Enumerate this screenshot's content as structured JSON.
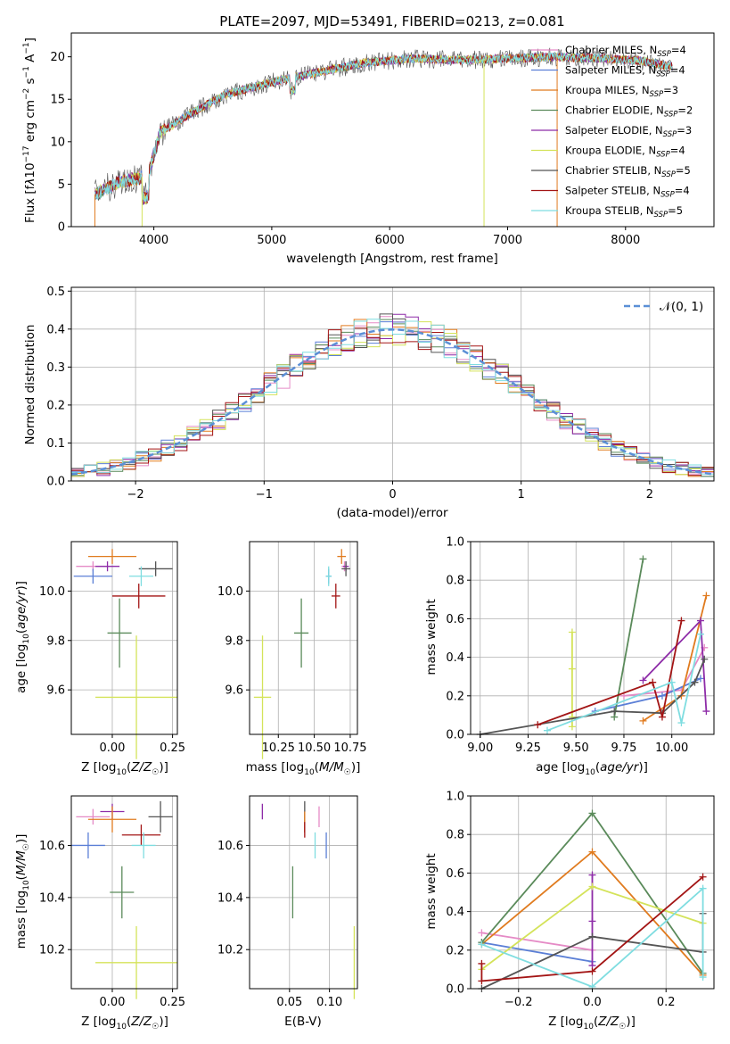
{
  "title": "PLATE=2097, MJD=53491, FIBERID=0213, z=0.081",
  "colors": {
    "Chabrier MILES": "#e58bc6",
    "Salpeter MILES": "#5b7fd6",
    "Kroupa MILES": "#e07b1f",
    "Chabrier ELODIE": "#5a8a5a",
    "Salpeter ELODIE": "#8e2ca8",
    "Kroupa ELODIE": "#d4e35a",
    "Chabrier STELIB": "#555555",
    "Salpeter STELIB": "#a31515",
    "Kroupa STELIB": "#7fdde0"
  },
  "chart_data": [
    {
      "id": "spectrum",
      "type": "line",
      "xlabel": "wavelength [Angstrom, rest frame]",
      "ylabel": "Flux [fλ10⁻¹⁷ erg cm⁻² s⁻¹ A⁻¹]",
      "xlim": [
        3300,
        8750
      ],
      "ylim": [
        0,
        22.8
      ],
      "xticks": [
        4000,
        5000,
        6000,
        7000,
        8000
      ],
      "yticks": [
        0,
        5,
        10,
        15,
        20
      ],
      "legend_position": "right",
      "grid": false,
      "continuum": [
        [
          3500,
          3.8
        ],
        [
          3700,
          5.2
        ],
        [
          3950,
          6.0
        ],
        [
          4050,
          11.0
        ],
        [
          4300,
          13.2
        ],
        [
          4600,
          15.5
        ],
        [
          5000,
          17.0
        ],
        [
          5400,
          18.2
        ],
        [
          5800,
          19.3
        ],
        [
          6200,
          19.8
        ],
        [
          6600,
          19.6
        ],
        [
          7000,
          19.8
        ],
        [
          7400,
          20.0
        ],
        [
          7800,
          19.8
        ],
        [
          8100,
          19.6
        ],
        [
          8400,
          18.8
        ]
      ],
      "series": [
        {
          "name": "Chabrier MILES, N_SSP=4",
          "key": "Chabrier MILES",
          "color_key": "Chabrier MILES"
        },
        {
          "name": "Salpeter MILES, N_SSP=4",
          "key": "Salpeter MILES",
          "color_key": "Salpeter MILES"
        },
        {
          "name": "Kroupa MILES, N_SSP=3",
          "key": "Kroupa MILES",
          "color_key": "Kroupa MILES"
        },
        {
          "name": "Chabrier ELODIE, N_SSP=2",
          "key": "Chabrier ELODIE",
          "color_key": "Chabrier ELODIE"
        },
        {
          "name": "Salpeter ELODIE, N_SSP=3",
          "key": "Salpeter ELODIE",
          "color_key": "Salpeter ELODIE"
        },
        {
          "name": "Kroupa ELODIE, N_SSP=4",
          "key": "Kroupa ELODIE",
          "color_key": "Kroupa ELODIE"
        },
        {
          "name": "Chabrier STELIB, N_SSP=5",
          "key": "Chabrier STELIB",
          "color_key": "Chabrier STELIB"
        },
        {
          "name": "Salpeter STELIB, N_SSP=4",
          "key": "Salpeter STELIB",
          "color_key": "Salpeter STELIB"
        },
        {
          "name": "Kroupa STELIB, N_SSP=5",
          "key": "Kroupa STELIB",
          "color_key": "Kroupa STELIB"
        }
      ]
    },
    {
      "id": "residuals",
      "type": "line",
      "xlabel": "(data-model)/error",
      "ylabel": "Normed distribution",
      "xlim": [
        -2.5,
        2.5
      ],
      "ylim": [
        0,
        0.51
      ],
      "xticks": [
        -2,
        -1,
        0,
        1,
        2
      ],
      "xtick_labels": [
        "−2",
        "−1",
        "0",
        "1",
        "2"
      ],
      "yticks": [
        0.0,
        0.1,
        0.2,
        0.3,
        0.4,
        0.5
      ],
      "ytick_labels": [
        "0.0",
        "0.1",
        "0.2",
        "0.3",
        "0.4",
        "0.5"
      ],
      "grid": true,
      "legend_position": "upper right",
      "gaussian_label": "𝒩(0, 1)",
      "bin_width": 0.1
    },
    {
      "id": "age_vs_Z",
      "type": "scatter",
      "xlabel": "Z [log₁₀(Z/Z☉)]",
      "ylabel": "age  [log₁₀(age/yr)]",
      "xlim": [
        -0.17,
        0.27
      ],
      "ylim": [
        9.42,
        10.2
      ],
      "xticks": [
        0.0,
        0.25
      ],
      "xtick_labels": [
        "0.00",
        "0.25"
      ],
      "yticks": [
        9.6,
        9.8,
        10.0
      ],
      "ytick_labels": [
        "9.6",
        "9.8",
        "10.0"
      ],
      "grid": true,
      "points": [
        {
          "series": "Kroupa MILES",
          "x": 0.0,
          "y": 10.14,
          "xerr": 0.1,
          "yerr": 0.03
        },
        {
          "series": "Chabrier MILES",
          "x": -0.08,
          "y": 10.1,
          "xerr": 0.07,
          "yerr": 0.02
        },
        {
          "series": "Salpeter ELODIE",
          "x": -0.02,
          "y": 10.1,
          "xerr": 0.05,
          "yerr": 0.02
        },
        {
          "series": "Chabrier STELIB",
          "x": 0.18,
          "y": 10.09,
          "xerr": 0.07,
          "yerr": 0.03
        },
        {
          "series": "Salpeter MILES",
          "x": -0.08,
          "y": 10.06,
          "xerr": 0.08,
          "yerr": 0.03
        },
        {
          "series": "Kroupa STELIB",
          "x": 0.12,
          "y": 10.06,
          "xerr": 0.05,
          "yerr": 0.04
        },
        {
          "series": "Salpeter STELIB",
          "x": 0.11,
          "y": 9.98,
          "xerr": 0.11,
          "yerr": 0.05
        },
        {
          "series": "Chabrier ELODIE",
          "x": 0.03,
          "y": 9.83,
          "xerr": 0.05,
          "yerr": 0.14
        },
        {
          "series": "Kroupa ELODIE",
          "x": 0.1,
          "y": 9.57,
          "xerr": 0.17,
          "yerr": 0.25
        }
      ]
    },
    {
      "id": "age_vs_mass",
      "type": "scatter",
      "xlabel": "mass [log₁₀(M/M☉)]",
      "ylabel": "",
      "xlim": [
        10.05,
        10.8
      ],
      "ylim": [
        9.42,
        10.2
      ],
      "xticks": [
        10.25,
        10.5,
        10.75
      ],
      "xtick_labels": [
        "10.25",
        "10.50",
        "10.75"
      ],
      "yticks": [
        9.6,
        9.8,
        10.0
      ],
      "ytick_labels": [
        "9.6",
        "9.8",
        "10.0"
      ],
      "grid": true,
      "points": [
        {
          "series": "Kroupa MILES",
          "x": 10.69,
          "y": 10.14,
          "xerr": 0.03,
          "yerr": 0.03
        },
        {
          "series": "Chabrier MILES",
          "x": 10.71,
          "y": 10.1,
          "xerr": 0.02,
          "yerr": 0.02
        },
        {
          "series": "Salpeter ELODIE",
          "x": 10.72,
          "y": 10.1,
          "xerr": 0.02,
          "yerr": 0.02
        },
        {
          "series": "Chabrier STELIB",
          "x": 10.72,
          "y": 10.09,
          "xerr": 0.03,
          "yerr": 0.03
        },
        {
          "series": "Salpeter MILES",
          "x": 10.6,
          "y": 10.06,
          "xerr": 0.02,
          "yerr": 0.03
        },
        {
          "series": "Kroupa STELIB",
          "x": 10.6,
          "y": 10.06,
          "xerr": 0.02,
          "yerr": 0.04
        },
        {
          "series": "Salpeter STELIB",
          "x": 10.65,
          "y": 9.98,
          "xerr": 0.03,
          "yerr": 0.05
        },
        {
          "series": "Chabrier ELODIE",
          "x": 10.41,
          "y": 9.83,
          "xerr": 0.05,
          "yerr": 0.14
        },
        {
          "series": "Kroupa ELODIE",
          "x": 10.14,
          "y": 9.57,
          "xerr": 0.06,
          "yerr": 0.25
        }
      ]
    },
    {
      "id": "weight_vs_age",
      "type": "line",
      "xlabel": "age  [log₁₀(age/yr)]",
      "ylabel": "mass weight",
      "xlim": [
        8.95,
        10.22
      ],
      "ylim": [
        0,
        1
      ],
      "xticks": [
        9.0,
        9.25,
        9.5,
        9.75,
        10.0
      ],
      "xtick_labels": [
        "9.00",
        "9.25",
        "9.50",
        "9.75",
        "10.00"
      ],
      "yticks": [
        0.0,
        0.2,
        0.4,
        0.6,
        0.8,
        1.0
      ],
      "ytick_labels": [
        "0.0",
        "0.2",
        "0.4",
        "0.6",
        "0.8",
        "1.0"
      ],
      "grid": true,
      "series": [
        {
          "key": "Chabrier MILES",
          "x": [
            9.75,
            10.05,
            10.17
          ],
          "y": [
            0.2,
            0.23,
            0.45
          ]
        },
        {
          "key": "Salpeter MILES",
          "x": [
            9.6,
            9.95,
            10.15
          ],
          "y": [
            0.12,
            0.2,
            0.29
          ]
        },
        {
          "key": "Kroupa MILES",
          "x": [
            9.85,
            10.05,
            10.18
          ],
          "y": [
            0.07,
            0.2,
            0.72
          ]
        },
        {
          "key": "Chabrier ELODIE",
          "x": [
            9.85,
            9.7
          ],
          "y": [
            0.91,
            0.09
          ]
        },
        {
          "key": "Salpeter ELODIE",
          "x": [
            9.85,
            10.15,
            10.18
          ],
          "y": [
            0.28,
            0.59,
            0.12
          ]
        },
        {
          "key": "Kroupa ELODIE",
          "x": [
            9.48,
            9.48,
            9.48,
            9.48
          ],
          "y": [
            0.53,
            0.34,
            0.04,
            0.09
          ]
        },
        {
          "key": "Chabrier STELIB",
          "x": [
            9.0,
            9.7,
            9.95,
            10.12,
            10.17
          ],
          "y": [
            0.0,
            0.12,
            0.11,
            0.27,
            0.39
          ]
        },
        {
          "key": "Salpeter STELIB",
          "x": [
            9.3,
            9.9,
            9.95,
            10.05
          ],
          "y": [
            0.05,
            0.27,
            0.09,
            0.59
          ]
        },
        {
          "key": "Kroupa STELIB",
          "x": [
            9.35,
            10.0,
            10.05,
            10.15
          ],
          "y": [
            0.02,
            0.27,
            0.06,
            0.52
          ]
        }
      ]
    },
    {
      "id": "mass_vs_Z",
      "type": "scatter",
      "xlabel": "Z [log₁₀(Z/Z☉)]",
      "ylabel": "mass [log₁₀(M/M☉)]",
      "xlim": [
        -0.17,
        0.27
      ],
      "ylim": [
        10.05,
        10.79
      ],
      "xticks": [
        0.0,
        0.25
      ],
      "xtick_labels": [
        "0.00",
        "0.25"
      ],
      "yticks": [
        10.2,
        10.4,
        10.6
      ],
      "ytick_labels": [
        "10.2",
        "10.4",
        "10.6"
      ],
      "grid": true,
      "points": [
        {
          "series": "Salpeter ELODIE",
          "x": 0.0,
          "y": 10.73,
          "xerr": 0.05,
          "yerr": 0.03
        },
        {
          "series": "Chabrier MILES",
          "x": -0.08,
          "y": 10.71,
          "xerr": 0.07,
          "yerr": 0.03
        },
        {
          "series": "Kroupa MILES",
          "x": 0.0,
          "y": 10.7,
          "xerr": 0.1,
          "yerr": 0.05
        },
        {
          "series": "Chabrier STELIB",
          "x": 0.2,
          "y": 10.71,
          "xerr": 0.05,
          "yerr": 0.06
        },
        {
          "series": "Salpeter STELIB",
          "x": 0.12,
          "y": 10.64,
          "xerr": 0.08,
          "yerr": 0.04
        },
        {
          "series": "Salpeter MILES",
          "x": -0.1,
          "y": 10.6,
          "xerr": 0.07,
          "yerr": 0.05
        },
        {
          "series": "Kroupa STELIB",
          "x": 0.13,
          "y": 10.6,
          "xerr": 0.05,
          "yerr": 0.05
        },
        {
          "series": "Chabrier ELODIE",
          "x": 0.04,
          "y": 10.42,
          "xerr": 0.05,
          "yerr": 0.1
        },
        {
          "series": "Kroupa ELODIE",
          "x": 0.1,
          "y": 10.15,
          "xerr": 0.17,
          "yerr": 0.14
        }
      ]
    },
    {
      "id": "mass_vs_ebv",
      "type": "scatter",
      "xlabel": "E(B-V)",
      "ylabel": "",
      "xlim": [
        0.0,
        0.135
      ],
      "ylim": [
        10.05,
        10.79
      ],
      "xticks": [
        0.05,
        0.1
      ],
      "xtick_labels": [
        "0.05",
        "0.10"
      ],
      "yticks": [
        10.2,
        10.4,
        10.6
      ],
      "ytick_labels": [
        "10.2",
        "10.4",
        "10.6"
      ],
      "grid": true,
      "points": [
        {
          "series": "Salpeter ELODIE",
          "x": 0.016,
          "y": 10.73,
          "xerr": 0,
          "yerr": 0.03
        },
        {
          "series": "Chabrier STELIB",
          "x": 0.069,
          "y": 10.71,
          "xerr": 0,
          "yerr": 0.06
        },
        {
          "series": "Chabrier MILES",
          "x": 0.087,
          "y": 10.71,
          "xerr": 0,
          "yerr": 0.04
        },
        {
          "series": "Kroupa MILES",
          "x": 0.069,
          "y": 10.69,
          "xerr": 0,
          "yerr": 0.04
        },
        {
          "series": "Salpeter STELIB",
          "x": 0.069,
          "y": 10.66,
          "xerr": 0,
          "yerr": 0.03
        },
        {
          "series": "Salpeter MILES",
          "x": 0.096,
          "y": 10.6,
          "xerr": 0,
          "yerr": 0.05
        },
        {
          "series": "Kroupa STELIB",
          "x": 0.082,
          "y": 10.6,
          "xerr": 0,
          "yerr": 0.05
        },
        {
          "series": "Chabrier ELODIE",
          "x": 0.054,
          "y": 10.42,
          "xerr": 0,
          "yerr": 0.1
        },
        {
          "series": "Kroupa ELODIE",
          "x": 0.131,
          "y": 10.15,
          "xerr": 0,
          "yerr": 0.14
        }
      ]
    },
    {
      "id": "weight_vs_Z",
      "type": "line",
      "xlabel": "Z [log₁₀(Z/Z☉)]",
      "ylabel": "mass weight",
      "xlim": [
        -0.33,
        0.33
      ],
      "ylim": [
        0,
        1
      ],
      "xticks": [
        -0.2,
        0.0,
        0.2
      ],
      "xtick_labels": [
        "−0.2",
        "0.0",
        "0.2"
      ],
      "yticks": [
        0.0,
        0.2,
        0.4,
        0.6,
        0.8,
        1.0
      ],
      "ytick_labels": [
        "0.0",
        "0.2",
        "0.4",
        "0.6",
        "0.8",
        "1.0"
      ],
      "grid": true,
      "series": [
        {
          "key": "Chabrier MILES",
          "x": [
            -0.3,
            0.0
          ],
          "y": [
            0.29,
            0.2
          ]
        },
        {
          "key": "Salpeter MILES",
          "x": [
            -0.3,
            0.0
          ],
          "y": [
            0.24,
            0.14
          ]
        },
        {
          "key": "Kroupa MILES",
          "x": [
            -0.3,
            0.0,
            0.3
          ],
          "y": [
            0.23,
            0.71,
            0.07
          ]
        },
        {
          "key": "Chabrier ELODIE",
          "x": [
            -0.3,
            0.0,
            0.3
          ],
          "y": [
            0.24,
            0.91,
            0.08
          ]
        },
        {
          "key": "Salpeter ELODIE",
          "x": [
            0.0,
            0.0,
            0.0
          ],
          "y": [
            0.59,
            0.35,
            0.12
          ]
        },
        {
          "key": "Kroupa ELODIE",
          "x": [
            -0.3,
            0.0,
            0.3
          ],
          "y": [
            0.1,
            0.53,
            0.34
          ]
        },
        {
          "key": "Chabrier STELIB",
          "x": [
            -0.3,
            0.0,
            0.3,
            0.3
          ],
          "y": [
            0.0,
            0.27,
            0.19,
            0.39
          ]
        },
        {
          "key": "Salpeter STELIB",
          "x": [
            -0.3,
            -0.3,
            0.0,
            0.3
          ],
          "y": [
            0.13,
            0.04,
            0.09,
            0.58
          ]
        },
        {
          "key": "Kroupa STELIB",
          "x": [
            -0.3,
            0.0,
            0.3,
            0.3
          ],
          "y": [
            0.23,
            0.01,
            0.52,
            0.06
          ]
        }
      ]
    }
  ]
}
